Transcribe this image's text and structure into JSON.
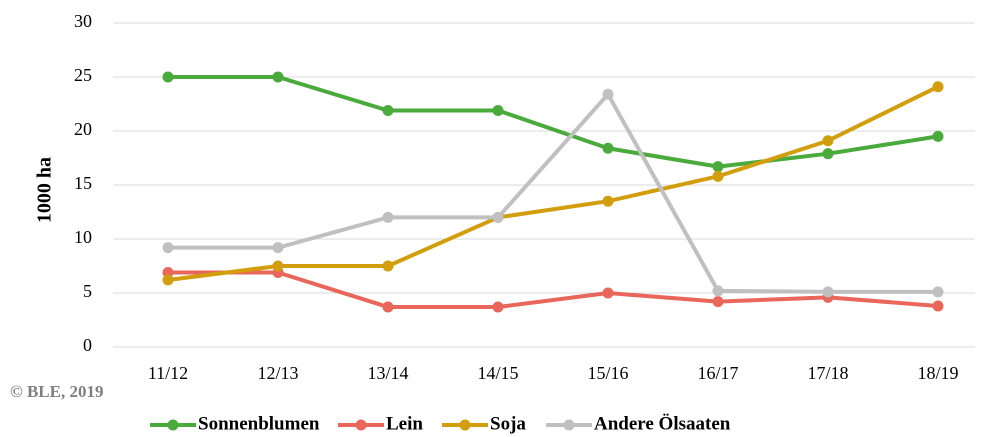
{
  "chart_data": {
    "type": "line",
    "y_label": "1000 ha",
    "note": "© BLE, 2019",
    "categories": [
      "11/12",
      "12/13",
      "13/14",
      "14/15",
      "15/16",
      "16/17",
      "17/18",
      "18/19"
    ],
    "series": [
      {
        "name": "Sonnenblumen",
        "color": "#4aab3c",
        "values": [
          25,
          25,
          21.9,
          21.9,
          18.4,
          16.7,
          17.9,
          19.5
        ]
      },
      {
        "name": "Lein",
        "color": "#e8665a",
        "values": [
          6.9,
          6.9,
          3.7,
          3.7,
          5.0,
          4.2,
          4.6,
          3.8
        ]
      },
      {
        "name": "Soja",
        "color": "#d29e0e",
        "values": [
          6.2,
          7.5,
          7.5,
          12.0,
          13.5,
          15.8,
          19.1,
          24.1
        ]
      },
      {
        "name": "Andere Ölsaaten",
        "color": "#c0c0c0",
        "values": [
          9.2,
          9.2,
          12.0,
          12.0,
          23.4,
          5.2,
          5.1,
          5.1
        ]
      }
    ],
    "ylim": [
      0,
      30
    ],
    "yticks": [
      0,
      5,
      10,
      15,
      20,
      25,
      30
    ],
    "grid": true,
    "legend": "bottom"
  }
}
